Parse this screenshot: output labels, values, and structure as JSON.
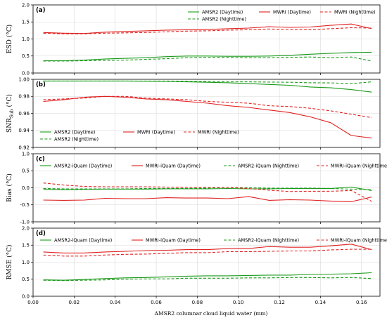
{
  "figure": {
    "xlabel": "AMSR2 columnar cloud liquid water (mm)",
    "xticks": [
      "0.00",
      "0.02",
      "0.04",
      "0.06",
      "0.08",
      "0.10",
      "0.12",
      "0.14",
      "0.16"
    ],
    "colors": {
      "green": "#1a9a1a",
      "red": "#e02020"
    }
  },
  "chart_data": [
    {
      "type": "line",
      "panel": "(a)",
      "ylabel_main": "ESD",
      "ylabel_unit": "(°C)",
      "xlim": [
        0.0,
        0.169
      ],
      "ylim": [
        0.0,
        2.0
      ],
      "yticks": [
        "0.0",
        "0.5",
        "1.0",
        "1.5",
        "2.0"
      ],
      "grid": true,
      "legend_position": "top-right",
      "x": [
        0.005,
        0.015,
        0.025,
        0.035,
        0.045,
        0.055,
        0.065,
        0.075,
        0.085,
        0.095,
        0.105,
        0.115,
        0.125,
        0.135,
        0.145,
        0.155,
        0.165
      ],
      "series": [
        {
          "name": "AMSR2 (Daytime)",
          "color": "green",
          "dash": false,
          "values": [
            0.36,
            0.36,
            0.38,
            0.41,
            0.43,
            0.45,
            0.48,
            0.5,
            0.5,
            0.49,
            0.49,
            0.5,
            0.52,
            0.55,
            0.58,
            0.6,
            0.61
          ]
        },
        {
          "name": "MWRI (Daytime)",
          "color": "red",
          "dash": false,
          "values": [
            1.19,
            1.17,
            1.16,
            1.2,
            1.22,
            1.24,
            1.26,
            1.27,
            1.28,
            1.3,
            1.32,
            1.36,
            1.34,
            1.35,
            1.4,
            1.44,
            1.3
          ]
        },
        {
          "name": "MWRI (Nighttime)",
          "color": "red",
          "dash": true,
          "values": [
            1.17,
            1.15,
            1.15,
            1.17,
            1.18,
            1.19,
            1.21,
            1.23,
            1.24,
            1.26,
            1.27,
            1.29,
            1.28,
            1.27,
            1.3,
            1.33,
            1.32
          ]
        },
        {
          "name": "AMSR2 (Nighttime)",
          "color": "green",
          "dash": true,
          "values": [
            0.35,
            0.35,
            0.36,
            0.37,
            0.38,
            0.4,
            0.42,
            0.45,
            0.46,
            0.46,
            0.45,
            0.45,
            0.46,
            0.47,
            0.45,
            0.47,
            0.35
          ]
        }
      ]
    },
    {
      "type": "line",
      "panel": "(b)",
      "ylabel_main": "SNR",
      "ylabel_sub": "Sub",
      "ylabel_unit": "(°C)",
      "xlim": [
        0.0,
        0.169
      ],
      "ylim": [
        0.92,
        1.0
      ],
      "yticks": [
        "0.92",
        "0.94",
        "0.96",
        "0.98",
        "1.00"
      ],
      "grid": true,
      "legend_position": "lower-left",
      "x": [
        0.005,
        0.015,
        0.025,
        0.035,
        0.045,
        0.055,
        0.065,
        0.075,
        0.085,
        0.095,
        0.105,
        0.115,
        0.125,
        0.135,
        0.145,
        0.155,
        0.165
      ],
      "series": [
        {
          "name": "AMSR2 (Daytime)",
          "color": "green",
          "dash": false,
          "values": [
            0.998,
            0.998,
            0.998,
            0.998,
            0.998,
            0.9978,
            0.9975,
            0.997,
            0.9965,
            0.996,
            0.995,
            0.994,
            0.993,
            0.991,
            0.99,
            0.988,
            0.985
          ]
        },
        {
          "name": "MWRI (Daytime)",
          "color": "red",
          "dash": false,
          "values": [
            0.974,
            0.976,
            0.979,
            0.98,
            0.979,
            0.977,
            0.976,
            0.974,
            0.972,
            0.969,
            0.967,
            0.964,
            0.961,
            0.956,
            0.949,
            0.934,
            0.931
          ]
        },
        {
          "name": "MWRI (Nighttime)",
          "color": "red",
          "dash": true,
          "values": [
            0.976,
            0.977,
            0.978,
            0.98,
            0.98,
            0.978,
            0.977,
            0.976,
            0.974,
            0.973,
            0.972,
            0.969,
            0.968,
            0.966,
            0.963,
            0.959,
            0.955
          ]
        },
        {
          "name": "AMSR2 (Nighttime)",
          "color": "green",
          "dash": true,
          "values": [
            0.998,
            0.998,
            0.998,
            0.998,
            0.998,
            0.998,
            0.998,
            0.9978,
            0.9975,
            0.997,
            0.997,
            0.9968,
            0.9965,
            0.996,
            0.9958,
            0.995,
            0.997
          ]
        }
      ]
    },
    {
      "type": "line",
      "panel": "(c)",
      "ylabel_main": "Bias",
      "ylabel_unit": "(°C)",
      "xlim": [
        0.0,
        0.169
      ],
      "ylim": [
        -1.0,
        1.0
      ],
      "yticks": [
        "-1.0",
        "-0.5",
        "0.0",
        "0.5",
        "1.0"
      ],
      "grid": true,
      "legend_position": "top",
      "x": [
        0.005,
        0.015,
        0.025,
        0.035,
        0.045,
        0.055,
        0.065,
        0.075,
        0.085,
        0.095,
        0.105,
        0.115,
        0.125,
        0.135,
        0.145,
        0.155,
        0.165
      ],
      "series": [
        {
          "name": "AMSR2-iQuam (Daytime)",
          "color": "green",
          "dash": false,
          "values": [
            -0.05,
            -0.06,
            -0.05,
            -0.04,
            -0.04,
            -0.04,
            -0.03,
            -0.03,
            -0.03,
            -0.02,
            -0.03,
            -0.03,
            -0.02,
            -0.02,
            -0.02,
            0.02,
            -0.08
          ]
        },
        {
          "name": "MWRI-iQuam (Daytime)",
          "color": "red",
          "dash": false,
          "values": [
            -0.36,
            -0.37,
            -0.36,
            -0.31,
            -0.32,
            -0.32,
            -0.29,
            -0.3,
            -0.3,
            -0.32,
            -0.26,
            -0.37,
            -0.35,
            -0.36,
            -0.39,
            -0.41,
            -0.27
          ]
        },
        {
          "name": "AMSR2-iQuam (Nighttime)",
          "color": "green",
          "dash": true,
          "values": [
            -0.02,
            -0.03,
            -0.03,
            -0.03,
            -0.03,
            -0.02,
            -0.02,
            -0.02,
            -0.01,
            0.01,
            0.0,
            -0.01,
            -0.01,
            -0.01,
            -0.02,
            -0.04,
            -0.06
          ]
        },
        {
          "name": "MWRI-iQuam (Nighttime)",
          "color": "red",
          "dash": true,
          "values": [
            0.14,
            0.08,
            0.04,
            0.03,
            0.03,
            0.03,
            0.02,
            0.01,
            0.01,
            0.01,
            -0.02,
            -0.07,
            -0.11,
            -0.1,
            -0.1,
            -0.08,
            -0.4
          ]
        }
      ]
    },
    {
      "type": "line",
      "panel": "(d)",
      "ylabel_main": "RMSE",
      "ylabel_unit": "(°C)",
      "xlim": [
        0.0,
        0.169
      ],
      "ylim": [
        0.0,
        2.0
      ],
      "yticks": [
        "0.0",
        "0.5",
        "1.0",
        "1.5",
        "2.0"
      ],
      "grid": true,
      "legend_position": "top",
      "x": [
        0.005,
        0.015,
        0.025,
        0.035,
        0.045,
        0.055,
        0.065,
        0.075,
        0.085,
        0.095,
        0.105,
        0.115,
        0.125,
        0.135,
        0.145,
        0.155,
        0.165
      ],
      "series": [
        {
          "name": "AMSR2-iQuam (Daytime)",
          "color": "green",
          "dash": false,
          "values": [
            0.48,
            0.47,
            0.49,
            0.52,
            0.54,
            0.55,
            0.57,
            0.59,
            0.6,
            0.6,
            0.61,
            0.62,
            0.62,
            0.64,
            0.65,
            0.66,
            0.69
          ]
        },
        {
          "name": "MWRI-iQuam (Daytime)",
          "color": "red",
          "dash": false,
          "values": [
            1.3,
            1.27,
            1.27,
            1.3,
            1.32,
            1.34,
            1.35,
            1.37,
            1.37,
            1.4,
            1.4,
            1.46,
            1.44,
            1.44,
            1.48,
            1.53,
            1.37
          ]
        },
        {
          "name": "AMSR2-iQuam (Nighttime)",
          "color": "green",
          "dash": true,
          "values": [
            0.47,
            0.46,
            0.47,
            0.48,
            0.5,
            0.51,
            0.51,
            0.53,
            0.53,
            0.53,
            0.54,
            0.54,
            0.55,
            0.55,
            0.54,
            0.55,
            0.52
          ]
        },
        {
          "name": "MWRI-iQuam (Nighttime)",
          "color": "red",
          "dash": true,
          "values": [
            1.21,
            1.18,
            1.18,
            1.21,
            1.23,
            1.24,
            1.26,
            1.28,
            1.28,
            1.31,
            1.31,
            1.32,
            1.33,
            1.33,
            1.36,
            1.38,
            1.38
          ]
        }
      ]
    }
  ]
}
